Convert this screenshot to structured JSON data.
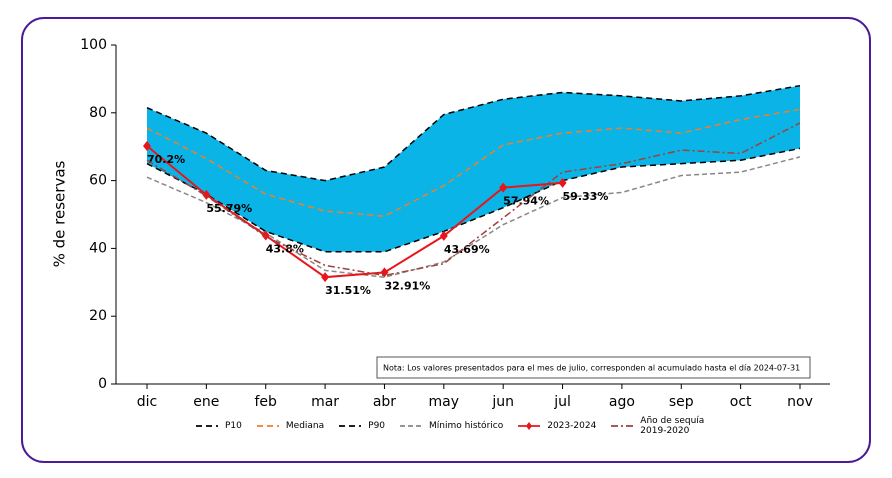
{
  "chart_data": {
    "type": "line",
    "ylabel": "% de reservas",
    "categories": [
      "dic",
      "ene",
      "feb",
      "mar",
      "abr",
      "may",
      "jun",
      "jul",
      "ago",
      "sep",
      "oct",
      "nov"
    ],
    "ylim": [
      0,
      100
    ],
    "yticks": [
      0,
      20,
      40,
      60,
      80,
      100
    ],
    "band_color": "#0ab4e6",
    "note": "Nota: Los valores presentados para el mes de julio, corresponden al acumulado hasta el día 2024-07-31",
    "series": [
      {
        "name": "P10",
        "color": "#000000",
        "dash": "6 4",
        "values": [
          65,
          56,
          45,
          39,
          39,
          45,
          52,
          60,
          64,
          65,
          66,
          69.5
        ]
      },
      {
        "name": "Mediana",
        "color": "#f07f2a",
        "dash": "6 4",
        "values": [
          75.5,
          66.5,
          56,
          51,
          49.5,
          58.5,
          70.5,
          74,
          75.5,
          74,
          78,
          81
        ]
      },
      {
        "name": "P90",
        "color": "#000000",
        "dash": "6 4",
        "values": [
          81.5,
          74,
          63,
          60,
          64,
          79.5,
          84,
          86,
          85,
          83.5,
          85,
          88
        ]
      },
      {
        "name": "Mínimo histórico",
        "color": "#888888",
        "dash": "5 3",
        "values": [
          61,
          53.5,
          44.5,
          33.5,
          31.5,
          36,
          47,
          55,
          56.5,
          61.5,
          62.5,
          67
        ]
      },
      {
        "name": "2023-2024",
        "color": "#e8161b",
        "dash": "",
        "marker": "diamond",
        "values": [
          70.2,
          55.79,
          43.8,
          31.51,
          32.91,
          43.69,
          57.94,
          59.33,
          null,
          null,
          null,
          null
        ],
        "value_labels": [
          "70.2%",
          "55.79%",
          "43.8%",
          "31.51%",
          "32.91%",
          "43.69%",
          "57.94%",
          "59.33%",
          null,
          null,
          null,
          null
        ]
      },
      {
        "name": "Año de sequía 2019-2020",
        "color": "#a0403a",
        "dash": "7 3 2 3",
        "values": [
          66,
          55.5,
          43.5,
          35,
          32,
          35.5,
          49,
          62.5,
          65,
          69,
          68,
          77
        ]
      }
    ]
  }
}
